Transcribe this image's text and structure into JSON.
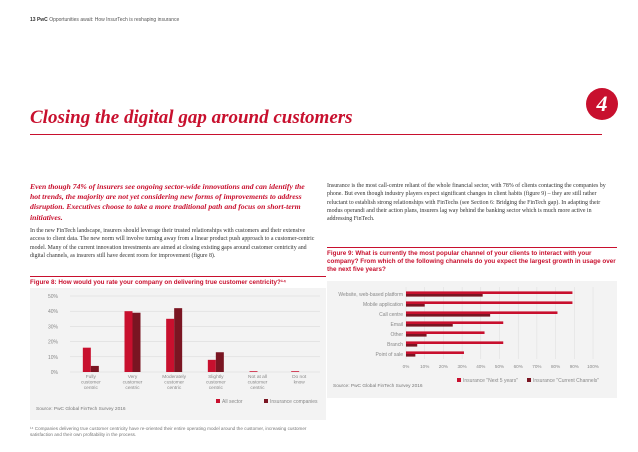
{
  "header": {
    "page_number": "13",
    "brand": "PwC",
    "doc_title": "Opportunities await: How InsurTech is reshaping insurance"
  },
  "chapter_number": "4",
  "section_title": "Closing the digital gap around customers",
  "intro_text": "Even though 74% of insurers see ongoing sector-wide innovations and can identify the hot trends, the majority are not yet considering new forms of improvements to address disruption. Executives choose to take a more traditional path and focus on short-term initiatives.",
  "body_left": "In the new FinTech landscape, insurers should leverage their trusted relationships with customers and their extensive access to client data. The new norm will involve turning away from a linear product push approach to a customer-centric model. Many of the current innovation investments are aimed at closing existing gaps around customer centricity and digital channels, as insurers still have decent room for improvement (figure 8).",
  "body_right": "Insurance is the most call-centre reliant of the whole financial sector, with 78% of clients contacting the companies by phone. But even though industry players expect significant changes in client habits (figure 9) – they are still rather reluctant to establish strong relationships with FinTechs (see Section 6: Bridging the FinTech gap). In adapting their modus operandi and their action plans, insurers lag way behind the banking sector which is much more active in addressing FinTech.",
  "figure8": {
    "title": "Figure 8: How would you rate your company on delivering true customer centricity?¹⁴",
    "source": "Source: PwC Global FinTech Survey 2016"
  },
  "figure9": {
    "title": "Figure 9: What is currently the most popular channel of your clients to interact with your company? From which of the following channels do you expect the largest growth in usage over the next five years?",
    "source": "Source: PwC Global FinTech Survey 2016"
  },
  "footnote": "¹⁴ Companies delivering true customer centricity have re-oriented their entire operating model around the customer, increasing customer satisfaction and their own profitability in the process.",
  "colors": {
    "accent": "#c8102e",
    "dark_red": "#7a1522",
    "panel": "#f3f3f3"
  },
  "chart_data": [
    {
      "type": "bar",
      "orientation": "vertical",
      "categories": [
        "Fully customer centric",
        "Very customer centric",
        "Moderately customer centric",
        "Slightly customer centric",
        "Not at all customer centric",
        "Do not know"
      ],
      "category_label_lines": [
        [
          "Fully",
          "customer",
          "centric"
        ],
        [
          "Very",
          "customer",
          "centric"
        ],
        [
          "Moderately",
          "customer",
          "centric"
        ],
        [
          "Slightly",
          "customer",
          "centric"
        ],
        [
          "Not at all",
          "customer",
          "centric"
        ],
        [
          "Do not",
          "know"
        ]
      ],
      "series": [
        {
          "name": "All sector",
          "color": "#c8102e",
          "values": [
            16,
            40,
            35,
            8,
            0.5,
            0.5
          ]
        },
        {
          "name": "Insurance companies",
          "color": "#7a1522",
          "values": [
            4,
            39,
            42,
            13,
            0,
            0
          ]
        }
      ],
      "ylim": [
        0,
        50
      ],
      "yticks": [
        0,
        10,
        20,
        30,
        40,
        50
      ],
      "ytick_labels": [
        "0%",
        "10%",
        "20%",
        "30%",
        "40%",
        "50%"
      ],
      "grid": true,
      "legend": "bottom-right"
    },
    {
      "type": "bar",
      "orientation": "horizontal",
      "categories": [
        "Website, web-based platform",
        "Mobile application",
        "Call centre",
        "Email",
        "Other",
        "Branch",
        "Point of sale"
      ],
      "series": [
        {
          "name": "Insurance \"Next 5 years\"",
          "color": "#c8102e",
          "values": [
            89,
            89,
            81,
            52,
            42,
            52,
            31
          ]
        },
        {
          "name": "Insurance \"Current Channels\"",
          "color": "#7a1522",
          "values": [
            41,
            10,
            45,
            25,
            11,
            6,
            5
          ]
        }
      ],
      "xlim": [
        0,
        100
      ],
      "xticks": [
        0,
        10,
        20,
        30,
        40,
        50,
        60,
        70,
        80,
        90,
        100
      ],
      "xtick_labels": [
        "0%",
        "10%",
        "20%",
        "30%",
        "40%",
        "50%",
        "60%",
        "70%",
        "80%",
        "90%",
        "100%"
      ],
      "grid": true,
      "legend": "bottom"
    }
  ]
}
